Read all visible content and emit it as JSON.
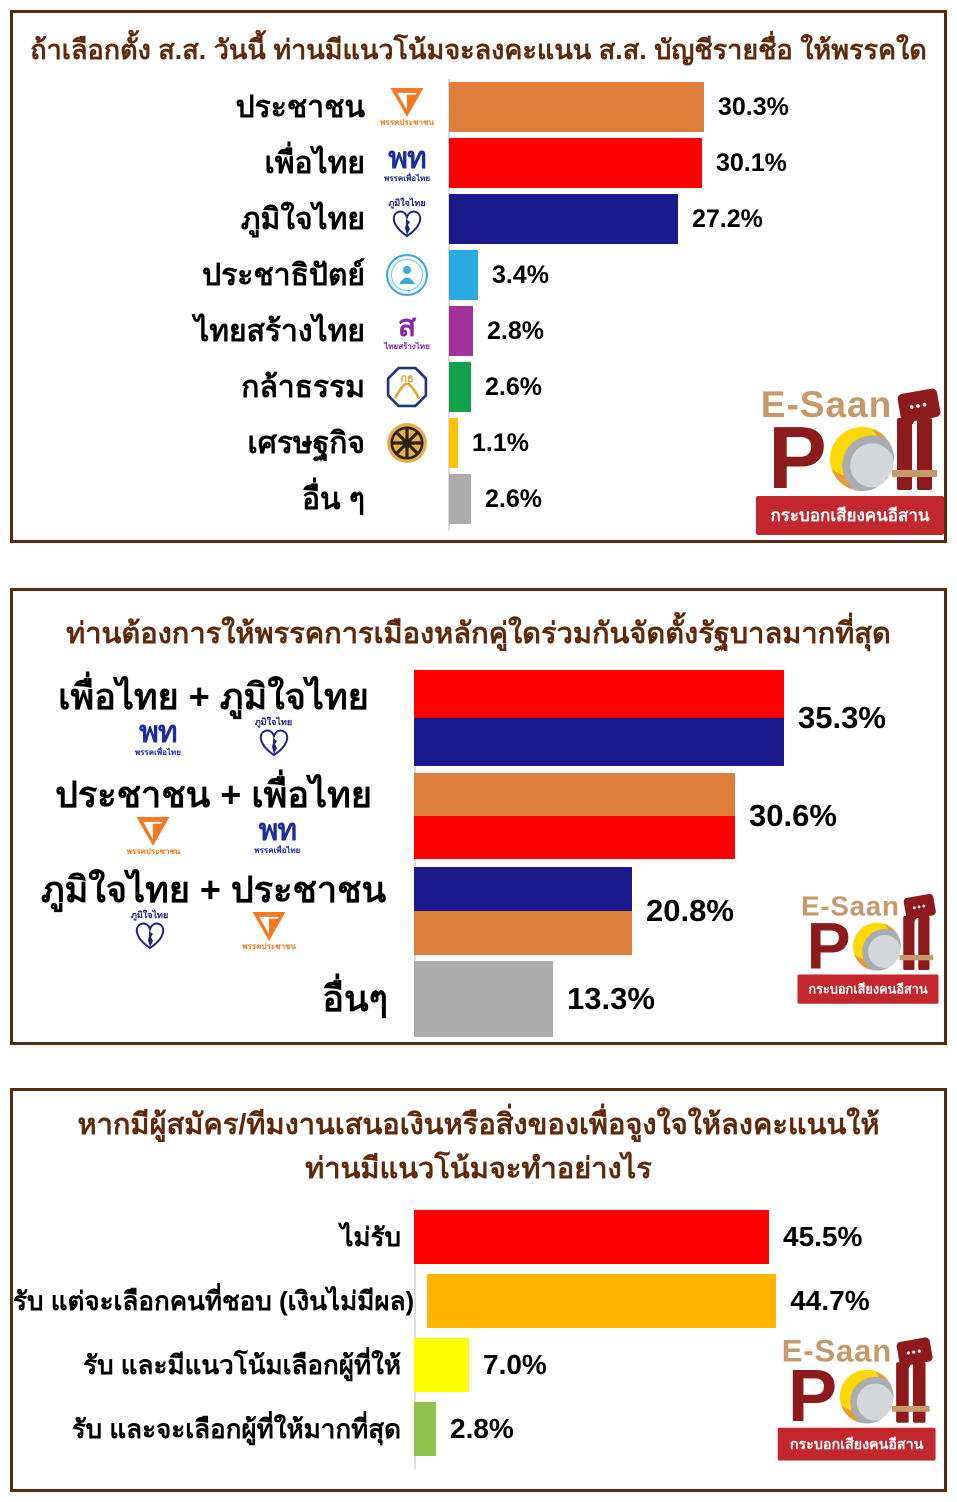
{
  "brand": {
    "name_top": "E-Saan",
    "p_letter": "P",
    "ll_letters": "ll",
    "tagline": "กระบอกเสียงคนอีสาน",
    "colors": {
      "gold": "#C49A6C",
      "dark_red": "#8E1B1B",
      "banner_red": "#C1272D"
    }
  },
  "parties": {
    "peoples": {
      "label": "พรรคประชาชน",
      "color": "#F47920"
    },
    "pheuthai": {
      "abbr": "พท",
      "label": "พรรคเพื่อไทย",
      "color": "#1C2E9E"
    },
    "bhumjaithai": {
      "label": "ภูมิใจไทย",
      "color": "#23237E"
    },
    "democrat": {
      "color": "#3FA9DC"
    },
    "thaisangthai": {
      "abbr": "ส",
      "label": "ไทยสร้างไทย",
      "color": "#8428A8"
    },
    "klatham": {
      "abbr": "กธ",
      "color": "#223380",
      "accent": "#E2A33B"
    },
    "setthakij": {
      "color": "#E3B04B",
      "accent": "#2E2310"
    }
  },
  "chart_data": [
    {
      "type": "bar",
      "orientation": "horizontal",
      "title": "ถ้าเลือกตั้ง ส.ส. วันนี้ ท่านมีแนวโน้มจะลงคะแนน ส.ส. บัญชีรายชื่อ ให้พรรคใด",
      "categories": [
        "ประชาชน",
        "เพื่อไทย",
        "ภูมิใจไทย",
        "ประชาธิปัตย์",
        "ไทยสร้างไทย",
        "กล้าธรรม",
        "เศรษฐกิจ",
        "อื่น ๆ"
      ],
      "values": [
        30.3,
        30.1,
        27.2,
        3.4,
        2.8,
        2.6,
        1.1,
        2.6
      ],
      "value_labels": [
        "30.3%",
        "30.1%",
        "27.2%",
        "3.4%",
        "2.8%",
        "2.6%",
        "1.1%",
        "2.6%"
      ],
      "bar_colors": [
        "#DE7E3B",
        "#FF0000",
        "#1A1A8C",
        "#29ABE2",
        "#A03299",
        "#12A14B",
        "#FFC000",
        "#ACACAC"
      ],
      "party_ids": [
        "peoples",
        "pheuthai",
        "bhumjaithai",
        "democrat",
        "thaisangthai",
        "klatham",
        "setthakij",
        null
      ],
      "xlim": [
        0,
        35
      ],
      "grid": false,
      "legend": false
    },
    {
      "type": "bar",
      "orientation": "horizontal",
      "title": "ท่านต้องการให้พรรคการเมืองหลักคู่ใดร่วมกันจัดตั้งรัฐบาลมากที่สุด",
      "categories": [
        "เพื่อไทย + ภูมิใจไทย",
        "ประชาชน + เพื่อไทย",
        "ภูมิใจไทย + ประชาชน",
        "อื่นๆ"
      ],
      "values": [
        35.3,
        30.6,
        20.8,
        13.3
      ],
      "value_labels": [
        "35.3%",
        "30.6%",
        "20.8%",
        "13.3%"
      ],
      "bar_colors": [
        [
          "#FF0000",
          "#1A1A8C"
        ],
        [
          "#DE7E3B",
          "#FF0000"
        ],
        [
          "#1A1A8C",
          "#DE7E3B"
        ],
        [
          "#ACACAC"
        ]
      ],
      "party_ids": [
        [
          "pheuthai",
          "bhumjaithai"
        ],
        [
          "peoples",
          "pheuthai"
        ],
        [
          "bhumjaithai",
          "peoples"
        ],
        []
      ],
      "xlim": [
        0,
        40
      ],
      "grid": false,
      "legend": false
    },
    {
      "type": "bar",
      "orientation": "horizontal",
      "title": "หากมีผู้สมัคร/ทีมงานเสนอเงินหรือสิ่งของเพื่อจูงใจให้ลงคะแนนให้ ท่านมีแนวโน้มจะทำอย่างไร",
      "title_lines": [
        "หากมีผู้สมัคร/ทีมงานเสนอเงินหรือสิ่งของเพื่อจูงใจให้ลงคะแนนให้",
        "ท่านมีแนวโน้มจะทำอย่างไร"
      ],
      "categories": [
        "ไม่รับ",
        "รับ แต่จะเลือกคนที่ชอบ (เงินไม่มีผล)",
        "รับ และมีแนวโน้มเลือกผู้ที่ให้",
        "รับ และจะเลือกผู้ที่ให้มากที่สุด"
      ],
      "values": [
        45.5,
        44.7,
        7.0,
        2.8
      ],
      "value_labels": [
        "45.5%",
        "44.7%",
        "7.0%",
        "2.8%"
      ],
      "bar_colors": [
        "#FF0000",
        "#FFB400",
        "#FFFF00",
        "#8FC24D"
      ],
      "xlim": [
        0,
        50
      ],
      "grid": false,
      "legend": false
    }
  ],
  "panel_style": {
    "border_color": "#572A0E",
    "title_color": "#5E2A0B"
  }
}
